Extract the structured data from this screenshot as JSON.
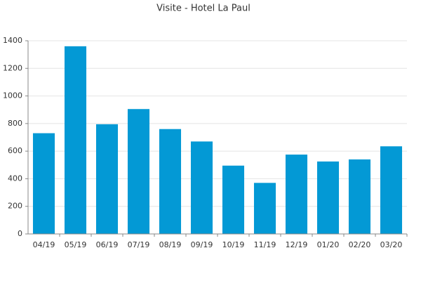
{
  "chart_data": {
    "type": "bar",
    "title": "Visite - Hotel La Paul",
    "categories": [
      "04/19",
      "05/19",
      "06/19",
      "07/19",
      "08/19",
      "09/19",
      "10/19",
      "11/19",
      "12/19",
      "01/20",
      "02/20",
      "03/20"
    ],
    "values": [
      730,
      1360,
      795,
      905,
      760,
      670,
      495,
      370,
      575,
      525,
      540,
      635
    ],
    "color": "#0399d5",
    "ylim": [
      0,
      1400
    ],
    "yticks": [
      0,
      200,
      400,
      600,
      800,
      1000,
      1200,
      1400
    ],
    "grid": true
  }
}
